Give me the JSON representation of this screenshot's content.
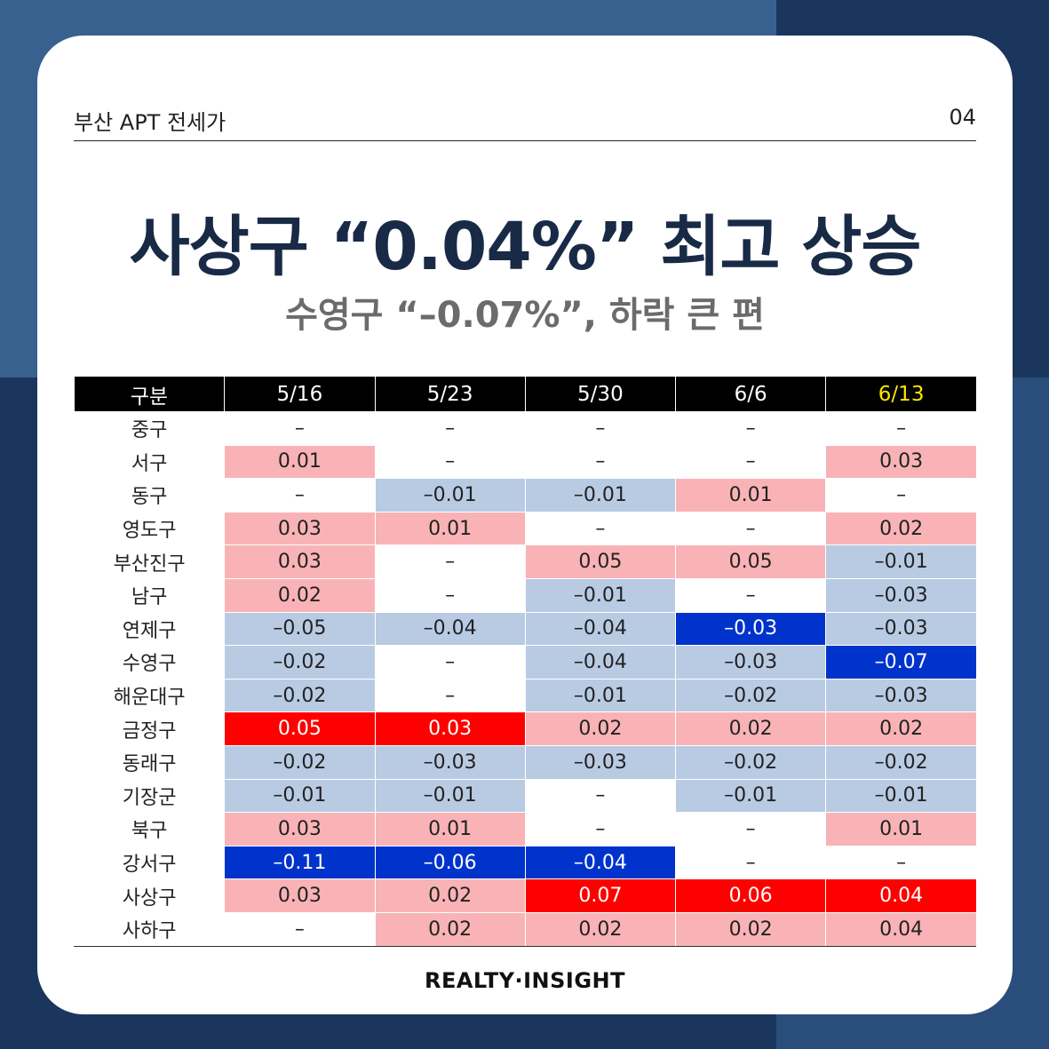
{
  "header": {
    "left": "부산 APT 전세가",
    "right": "04"
  },
  "title": "사상구 “0.04%” 최고 상승",
  "subtitle": "수영구 “–0.07%”, 하락 큰 편",
  "table": {
    "columns": [
      "구분",
      "5/16",
      "5/23",
      "5/30",
      "6/6",
      "6/13"
    ],
    "rows": [
      {
        "label": "중구",
        "cells": [
          {
            "v": "–",
            "t": "none"
          },
          {
            "v": "–",
            "t": "none"
          },
          {
            "v": "–",
            "t": "none"
          },
          {
            "v": "–",
            "t": "none"
          },
          {
            "v": "–",
            "t": "none"
          }
        ]
      },
      {
        "label": "서구",
        "cells": [
          {
            "v": "0.01",
            "t": "pos"
          },
          {
            "v": "–",
            "t": "none"
          },
          {
            "v": "–",
            "t": "none"
          },
          {
            "v": "–",
            "t": "none"
          },
          {
            "v": "0.03",
            "t": "pos"
          }
        ]
      },
      {
        "label": "동구",
        "cells": [
          {
            "v": "–",
            "t": "none"
          },
          {
            "v": "–0.01",
            "t": "neg"
          },
          {
            "v": "–0.01",
            "t": "neg"
          },
          {
            "v": "0.01",
            "t": "pos"
          },
          {
            "v": "–",
            "t": "none"
          }
        ]
      },
      {
        "label": "영도구",
        "cells": [
          {
            "v": "0.03",
            "t": "pos"
          },
          {
            "v": "0.01",
            "t": "pos"
          },
          {
            "v": "–",
            "t": "none"
          },
          {
            "v": "–",
            "t": "none"
          },
          {
            "v": "0.02",
            "t": "pos"
          }
        ]
      },
      {
        "label": "부산진구",
        "cells": [
          {
            "v": "0.03",
            "t": "pos"
          },
          {
            "v": "–",
            "t": "none"
          },
          {
            "v": "0.05",
            "t": "pos"
          },
          {
            "v": "0.05",
            "t": "pos"
          },
          {
            "v": "–0.01",
            "t": "neg"
          }
        ]
      },
      {
        "label": "남구",
        "cells": [
          {
            "v": "0.02",
            "t": "pos"
          },
          {
            "v": "–",
            "t": "none"
          },
          {
            "v": "–0.01",
            "t": "neg"
          },
          {
            "v": "–",
            "t": "none"
          },
          {
            "v": "–0.03",
            "t": "neg"
          }
        ]
      },
      {
        "label": "연제구",
        "cells": [
          {
            "v": "–0.05",
            "t": "neg"
          },
          {
            "v": "–0.04",
            "t": "neg"
          },
          {
            "v": "–0.04",
            "t": "neg"
          },
          {
            "v": "–0.03",
            "t": "strong-neg"
          },
          {
            "v": "–0.03",
            "t": "neg"
          }
        ]
      },
      {
        "label": "수영구",
        "cells": [
          {
            "v": "–0.02",
            "t": "neg"
          },
          {
            "v": "–",
            "t": "none"
          },
          {
            "v": "–0.04",
            "t": "neg"
          },
          {
            "v": "–0.03",
            "t": "neg"
          },
          {
            "v": "–0.07",
            "t": "strong-neg"
          }
        ]
      },
      {
        "label": "해운대구",
        "cells": [
          {
            "v": "–0.02",
            "t": "neg"
          },
          {
            "v": "–",
            "t": "none"
          },
          {
            "v": "–0.01",
            "t": "neg"
          },
          {
            "v": "–0.02",
            "t": "neg"
          },
          {
            "v": "–0.03",
            "t": "neg"
          }
        ]
      },
      {
        "label": "금정구",
        "cells": [
          {
            "v": "0.05",
            "t": "strong-pos"
          },
          {
            "v": "0.03",
            "t": "strong-pos"
          },
          {
            "v": "0.02",
            "t": "pos"
          },
          {
            "v": "0.02",
            "t": "pos"
          },
          {
            "v": "0.02",
            "t": "pos"
          }
        ]
      },
      {
        "label": "동래구",
        "cells": [
          {
            "v": "–0.02",
            "t": "neg"
          },
          {
            "v": "–0.03",
            "t": "neg"
          },
          {
            "v": "–0.03",
            "t": "neg"
          },
          {
            "v": "–0.02",
            "t": "neg"
          },
          {
            "v": "–0.02",
            "t": "neg"
          }
        ]
      },
      {
        "label": "기장군",
        "cells": [
          {
            "v": "–0.01",
            "t": "neg"
          },
          {
            "v": "–0.01",
            "t": "neg"
          },
          {
            "v": "–",
            "t": "none"
          },
          {
            "v": "–0.01",
            "t": "neg"
          },
          {
            "v": "–0.01",
            "t": "neg"
          }
        ]
      },
      {
        "label": "북구",
        "cells": [
          {
            "v": "0.03",
            "t": "pos"
          },
          {
            "v": "0.01",
            "t": "pos"
          },
          {
            "v": "–",
            "t": "none"
          },
          {
            "v": "–",
            "t": "none"
          },
          {
            "v": "0.01",
            "t": "pos"
          }
        ]
      },
      {
        "label": "강서구",
        "cells": [
          {
            "v": "–0.11",
            "t": "strong-neg"
          },
          {
            "v": "–0.06",
            "t": "strong-neg"
          },
          {
            "v": "–0.04",
            "t": "strong-neg"
          },
          {
            "v": "–",
            "t": "none"
          },
          {
            "v": "–",
            "t": "none"
          }
        ]
      },
      {
        "label": "사상구",
        "cells": [
          {
            "v": "0.03",
            "t": "pos"
          },
          {
            "v": "0.02",
            "t": "pos"
          },
          {
            "v": "0.07",
            "t": "strong-pos"
          },
          {
            "v": "0.06",
            "t": "strong-pos"
          },
          {
            "v": "0.04",
            "t": "strong-pos"
          }
        ]
      },
      {
        "label": "사하구",
        "cells": [
          {
            "v": "–",
            "t": "none"
          },
          {
            "v": "0.02",
            "t": "pos"
          },
          {
            "v": "0.02",
            "t": "pos"
          },
          {
            "v": "0.02",
            "t": "pos"
          },
          {
            "v": "0.04",
            "t": "pos"
          }
        ]
      }
    ]
  },
  "footer": "REALTY·INSIGHT",
  "colors": {
    "positive": "#f9b3b6",
    "negative": "#b9cbe3",
    "strong_positive": "#ff0000",
    "strong_negative": "#0033cc",
    "highlight_header": "#ffe600"
  }
}
